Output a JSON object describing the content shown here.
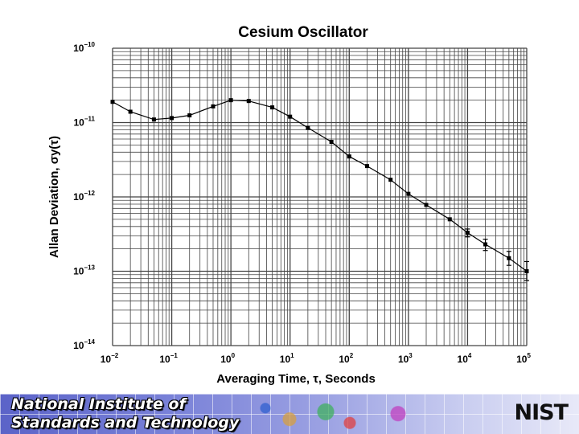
{
  "chart_data": {
    "type": "line",
    "title": "Cesium Oscillator",
    "xlabel": "Averaging Time, τ, Seconds",
    "ylabel": "Allan Deviation, σy(τ)",
    "x_scale": "log",
    "y_scale": "log",
    "xlim": [
      0.01,
      100000
    ],
    "ylim": [
      1e-14,
      1e-10
    ],
    "grid": true,
    "x_ticks": [
      {
        "base": "10",
        "exp": "−2"
      },
      {
        "base": "10",
        "exp": "−1"
      },
      {
        "base": "10",
        "exp": "0"
      },
      {
        "base": "10",
        "exp": "1"
      },
      {
        "base": "10",
        "exp": "2"
      },
      {
        "base": "10",
        "exp": "3"
      },
      {
        "base": "10",
        "exp": "4"
      },
      {
        "base": "10",
        "exp": "5"
      }
    ],
    "y_ticks": [
      {
        "base": "10",
        "exp": "−10"
      },
      {
        "base": "10",
        "exp": "−11"
      },
      {
        "base": "10",
        "exp": "−12"
      },
      {
        "base": "10",
        "exp": "−13"
      },
      {
        "base": "10",
        "exp": "−14"
      }
    ],
    "series": [
      {
        "points": [
          {
            "x": 0.01,
            "y": 1.9e-11
          },
          {
            "x": 0.02,
            "y": 1.4e-11
          },
          {
            "x": 0.05,
            "y": 1.1e-11
          },
          {
            "x": 0.1,
            "y": 1.15e-11
          },
          {
            "x": 0.2,
            "y": 1.25e-11
          },
          {
            "x": 0.5,
            "y": 1.65e-11
          },
          {
            "x": 1,
            "y": 2e-11
          },
          {
            "x": 2,
            "y": 1.95e-11
          },
          {
            "x": 5,
            "y": 1.6e-11
          },
          {
            "x": 10,
            "y": 1.2e-11
          },
          {
            "x": 20,
            "y": 8.5e-12
          },
          {
            "x": 50,
            "y": 5.5e-12
          },
          {
            "x": 100,
            "y": 3.5e-12
          },
          {
            "x": 200,
            "y": 2.6e-12
          },
          {
            "x": 500,
            "y": 1.7e-12
          },
          {
            "x": 1000,
            "y": 1.1e-12
          },
          {
            "x": 2000,
            "y": 7.8e-13
          },
          {
            "x": 5000,
            "y": 5e-13
          },
          {
            "x": 10000,
            "y": 3.3e-13,
            "err": [
              2.9e-13,
              3.7e-13
            ]
          },
          {
            "x": 20000,
            "y": 2.3e-13,
            "err": [
              1.9e-13,
              2.7e-13
            ]
          },
          {
            "x": 50000,
            "y": 1.5e-13,
            "err": [
              1.2e-13,
              1.85e-13
            ]
          },
          {
            "x": 100000,
            "y": 1e-13,
            "err": [
              7.5e-14,
              1.35e-13
            ]
          }
        ]
      }
    ]
  },
  "footer": {
    "title_line1": "National Institute of",
    "title_line2": "Standards and Technology",
    "logo": "NIST"
  },
  "colors": {
    "background": "#ffffff",
    "grid": "#444444",
    "line": "#000000",
    "footer_blue": "#5b63c8"
  }
}
